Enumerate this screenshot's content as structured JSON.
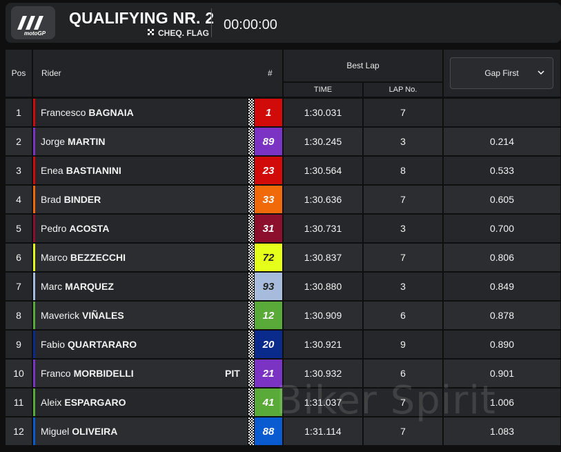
{
  "header": {
    "logo_text": "motoGP",
    "title": "QUALIFYING NR. 2",
    "flag_icon": "chequered-flag-icon",
    "subtitle": "CHEQ. FLAG",
    "clock": "00:00:00"
  },
  "table": {
    "col_pos": "Pos",
    "col_rider": "Rider",
    "col_num": "#",
    "col_best_lap": "Best Lap",
    "col_time": "TIME",
    "col_lap_no": "LAP No.",
    "gap_select": "Gap First",
    "rows": [
      {
        "pos": "1",
        "first": "Francesco",
        "last": "BAGNAIA",
        "pit": "",
        "num": "1",
        "color": "#d10a0a",
        "text_color": "#ffffff",
        "time": "1:30.031",
        "lap": "7",
        "gap": ""
      },
      {
        "pos": "2",
        "first": "Jorge",
        "last": "MARTIN",
        "pit": "",
        "num": "89",
        "color": "#7a33c2",
        "text_color": "#ffffff",
        "time": "1:30.245",
        "lap": "3",
        "gap": "0.214"
      },
      {
        "pos": "3",
        "first": "Enea",
        "last": "BASTIANINI",
        "pit": "",
        "num": "23",
        "color": "#d10a0a",
        "text_color": "#ffffff",
        "time": "1:30.564",
        "lap": "8",
        "gap": "0.533"
      },
      {
        "pos": "4",
        "first": "Brad",
        "last": "BINDER",
        "pit": "",
        "num": "33",
        "color": "#f06a0a",
        "text_color": "#ffffff",
        "time": "1:30.636",
        "lap": "7",
        "gap": "0.605"
      },
      {
        "pos": "5",
        "first": "Pedro",
        "last": "ACOSTA",
        "pit": "",
        "num": "31",
        "color": "#8c0f2e",
        "text_color": "#ffffff",
        "time": "1:30.731",
        "lap": "3",
        "gap": "0.700"
      },
      {
        "pos": "6",
        "first": "Marco",
        "last": "BEZZECCHI",
        "pit": "",
        "num": "72",
        "color": "#e5ff1a",
        "text_color": "#222222",
        "time": "1:30.837",
        "lap": "7",
        "gap": "0.806"
      },
      {
        "pos": "7",
        "first": "Marc",
        "last": "MARQUEZ",
        "pit": "",
        "num": "93",
        "color": "#a7bcdc",
        "text_color": "#222222",
        "time": "1:30.880",
        "lap": "3",
        "gap": "0.849"
      },
      {
        "pos": "8",
        "first": "Maverick",
        "last": "VIÑALES",
        "pit": "",
        "num": "12",
        "color": "#5aaa3a",
        "text_color": "#ffffff",
        "time": "1:30.909",
        "lap": "6",
        "gap": "0.878"
      },
      {
        "pos": "9",
        "first": "Fabio",
        "last": "QUARTARARO",
        "pit": "",
        "num": "20",
        "color": "#0a2a8c",
        "text_color": "#ffffff",
        "time": "1:30.921",
        "lap": "9",
        "gap": "0.890"
      },
      {
        "pos": "10",
        "first": "Franco",
        "last": "MORBIDELLI",
        "pit": "PIT",
        "num": "21",
        "color": "#7a33c2",
        "text_color": "#ffffff",
        "time": "1:30.932",
        "lap": "6",
        "gap": "0.901"
      },
      {
        "pos": "11",
        "first": "Aleix",
        "last": "ESPARGARO",
        "pit": "",
        "num": "41",
        "color": "#5aaa3a",
        "text_color": "#ffffff",
        "time": "1:31.037",
        "lap": "7",
        "gap": "1.006"
      },
      {
        "pos": "12",
        "first": "Miguel",
        "last": "OLIVEIRA",
        "pit": "",
        "num": "88",
        "color": "#0a5ad0",
        "text_color": "#ffffff",
        "time": "1:31.114",
        "lap": "7",
        "gap": "1.083"
      }
    ]
  },
  "watermark": "Biker Spirit"
}
